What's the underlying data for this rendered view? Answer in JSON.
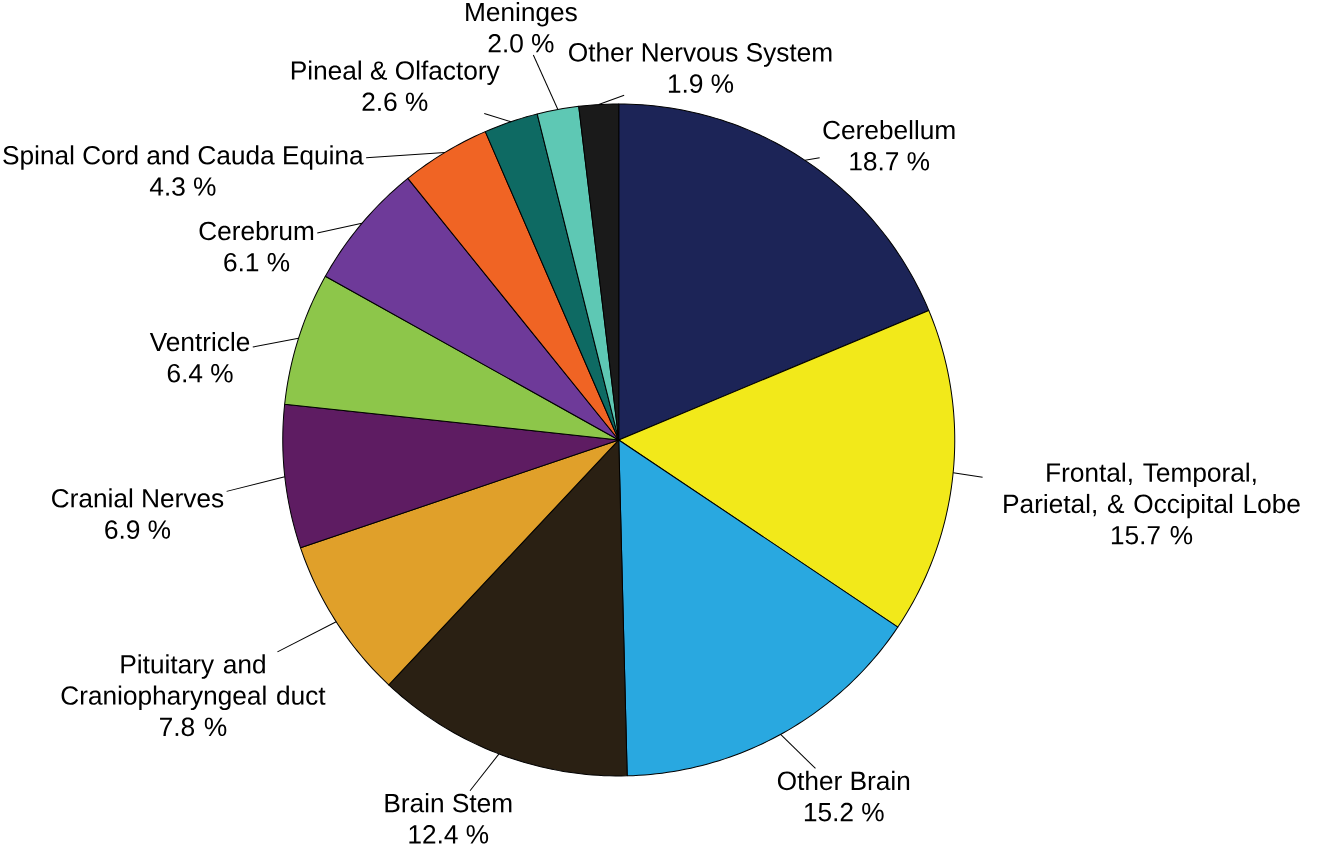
{
  "chart_data": {
    "type": "pie",
    "categories": [
      "Cerebellum",
      "Frontal, Temporal, Parietal, & Occipital Lobe",
      "Other Brain",
      "Brain Stem",
      "Pituitary and Craniopharyngeal duct",
      "Cranial Nerves",
      "Ventricle",
      "Cerebrum",
      "Spinal Cord and Cauda Equina",
      "Pineal & Olfactory",
      "Meninges",
      "Other Nervous System"
    ],
    "values": [
      18.7,
      15.7,
      15.2,
      12.4,
      7.8,
      6.9,
      6.4,
      6.1,
      4.3,
      2.6,
      2.0,
      1.9
    ],
    "value_labels": [
      "18.7 %",
      "15.7 %",
      "15.2 %",
      "12.4 %",
      "7.8 %",
      "6.9 %",
      "6.4 %",
      "6.1 %",
      "4.3 %",
      "2.6 %",
      "2.0 %",
      "1.9 %"
    ],
    "colors": [
      "#1c2457",
      "#f2e91a",
      "#29a8e0",
      "#2a2013",
      "#e0a02a",
      "#5e1c62",
      "#8dc64a",
      "#6e3a99",
      "#f06424",
      "#0e6a63",
      "#5ec8b4",
      "#1a1a1a"
    ]
  }
}
